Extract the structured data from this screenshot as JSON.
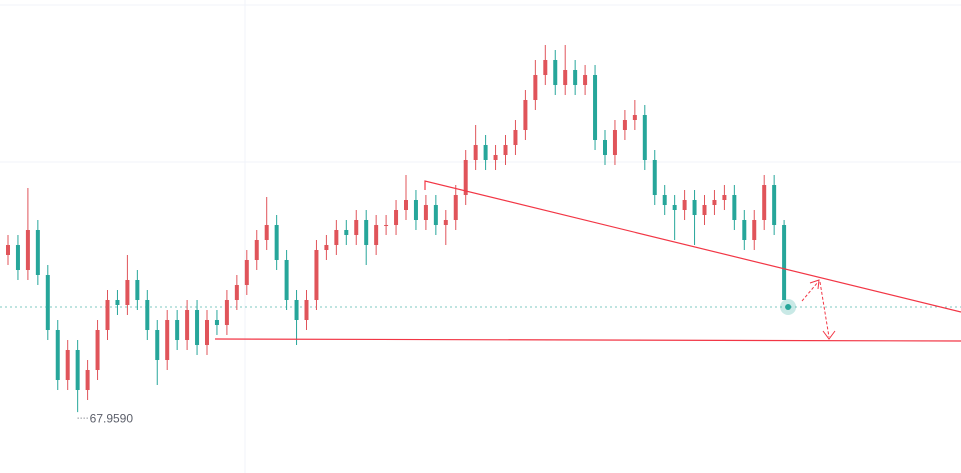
{
  "chart_data": {
    "type": "candlestick",
    "ylim": [
      67.35,
      72.08
    ],
    "up_color": "#e0545a",
    "down_color": "#26a69a",
    "open": [
      69.53,
      69.63,
      69.38,
      69.78,
      69.33,
      68.78,
      68.28,
      68.58,
      68.18,
      68.38,
      68.78,
      69.08,
      69.03,
      69.28,
      69.08,
      68.78,
      68.48,
      68.88,
      68.68,
      68.98,
      68.63,
      68.88,
      68.83,
      69.08,
      69.23,
      69.48,
      69.68,
      69.83,
      69.48,
      69.08,
      68.88,
      69.08,
      69.58,
      69.63,
      69.78,
      69.73,
      69.88,
      69.63,
      69.83,
      69.83,
      69.98,
      70.08,
      69.88,
      70.03,
      69.83,
      69.88,
      70.13,
      70.48,
      70.63,
      70.48,
      70.53,
      70.63,
      70.78,
      71.08,
      71.33,
      71.48,
      71.23,
      71.38,
      71.23,
      71.33,
      70.68,
      70.53,
      70.78,
      70.88,
      70.93,
      70.48,
      70.13,
      70.03,
      69.98,
      70.08,
      69.93,
      70.03,
      70.08,
      70.13,
      69.88,
      69.68,
      69.88,
      70.23,
      69.83
    ],
    "high": [
      69.73,
      69.73,
      70.2,
      69.88,
      69.43,
      68.88,
      68.68,
      68.68,
      68.48,
      68.88,
      69.18,
      69.18,
      69.53,
      69.38,
      69.18,
      68.88,
      68.98,
      68.98,
      69.08,
      69.08,
      68.98,
      68.98,
      69.18,
      69.33,
      69.58,
      69.78,
      70.11,
      69.93,
      69.58,
      69.18,
      69.18,
      69.68,
      69.73,
      69.88,
      69.88,
      69.98,
      69.98,
      69.93,
      69.93,
      70.08,
      70.33,
      70.18,
      70.13,
      70.13,
      69.98,
      70.23,
      70.58,
      70.83,
      70.73,
      70.63,
      70.73,
      70.88,
      71.18,
      71.48,
      71.63,
      71.58,
      71.63,
      71.48,
      71.43,
      71.43,
      70.78,
      70.88,
      70.98,
      71.08,
      71.03,
      70.58,
      70.23,
      70.13,
      70.18,
      70.18,
      70.13,
      70.18,
      70.23,
      70.23,
      69.98,
      69.98,
      70.33,
      70.33,
      69.88
    ],
    "low": [
      69.43,
      69.28,
      69.28,
      69.23,
      68.68,
      68.18,
      68.18,
      67.959,
      68.08,
      68.28,
      68.68,
      68.93,
      68.93,
      68.98,
      68.68,
      68.23,
      68.38,
      68.58,
      68.58,
      68.53,
      68.53,
      68.73,
      68.73,
      68.98,
      69.13,
      69.38,
      69.58,
      69.38,
      68.98,
      68.63,
      68.78,
      68.98,
      69.48,
      69.53,
      69.63,
      69.63,
      69.43,
      69.53,
      69.73,
      69.73,
      69.88,
      69.78,
      69.78,
      69.73,
      69.63,
      69.78,
      70.03,
      70.38,
      70.38,
      70.38,
      70.43,
      70.53,
      70.68,
      70.98,
      71.23,
      71.13,
      71.13,
      71.13,
      71.13,
      70.58,
      70.43,
      70.43,
      70.68,
      70.78,
      70.38,
      70.03,
      69.93,
      69.68,
      69.88,
      69.63,
      69.83,
      69.93,
      69.98,
      69.78,
      69.58,
      69.58,
      69.78,
      69.73,
      69.08
    ],
    "close": [
      69.63,
      69.38,
      69.78,
      69.33,
      68.78,
      68.28,
      68.58,
      68.18,
      68.38,
      68.78,
      69.08,
      69.03,
      69.28,
      69.08,
      68.78,
      68.48,
      68.88,
      68.68,
      68.98,
      68.63,
      68.88,
      68.83,
      69.08,
      69.23,
      69.48,
      69.68,
      69.83,
      69.48,
      69.08,
      68.88,
      69.08,
      69.58,
      69.63,
      69.78,
      69.73,
      69.88,
      69.63,
      69.83,
      69.83,
      69.98,
      70.08,
      69.88,
      70.03,
      69.83,
      69.88,
      70.13,
      70.48,
      70.63,
      70.48,
      70.53,
      70.63,
      70.78,
      71.08,
      71.33,
      71.48,
      71.23,
      71.38,
      71.23,
      71.33,
      70.68,
      70.53,
      70.78,
      70.88,
      70.93,
      70.48,
      70.13,
      70.03,
      69.98,
      70.08,
      69.93,
      70.03,
      70.08,
      70.13,
      69.88,
      69.68,
      69.88,
      70.23,
      69.83,
      69.08
    ],
    "low_label": {
      "value": 67.959,
      "label": "67.9590"
    }
  }
}
